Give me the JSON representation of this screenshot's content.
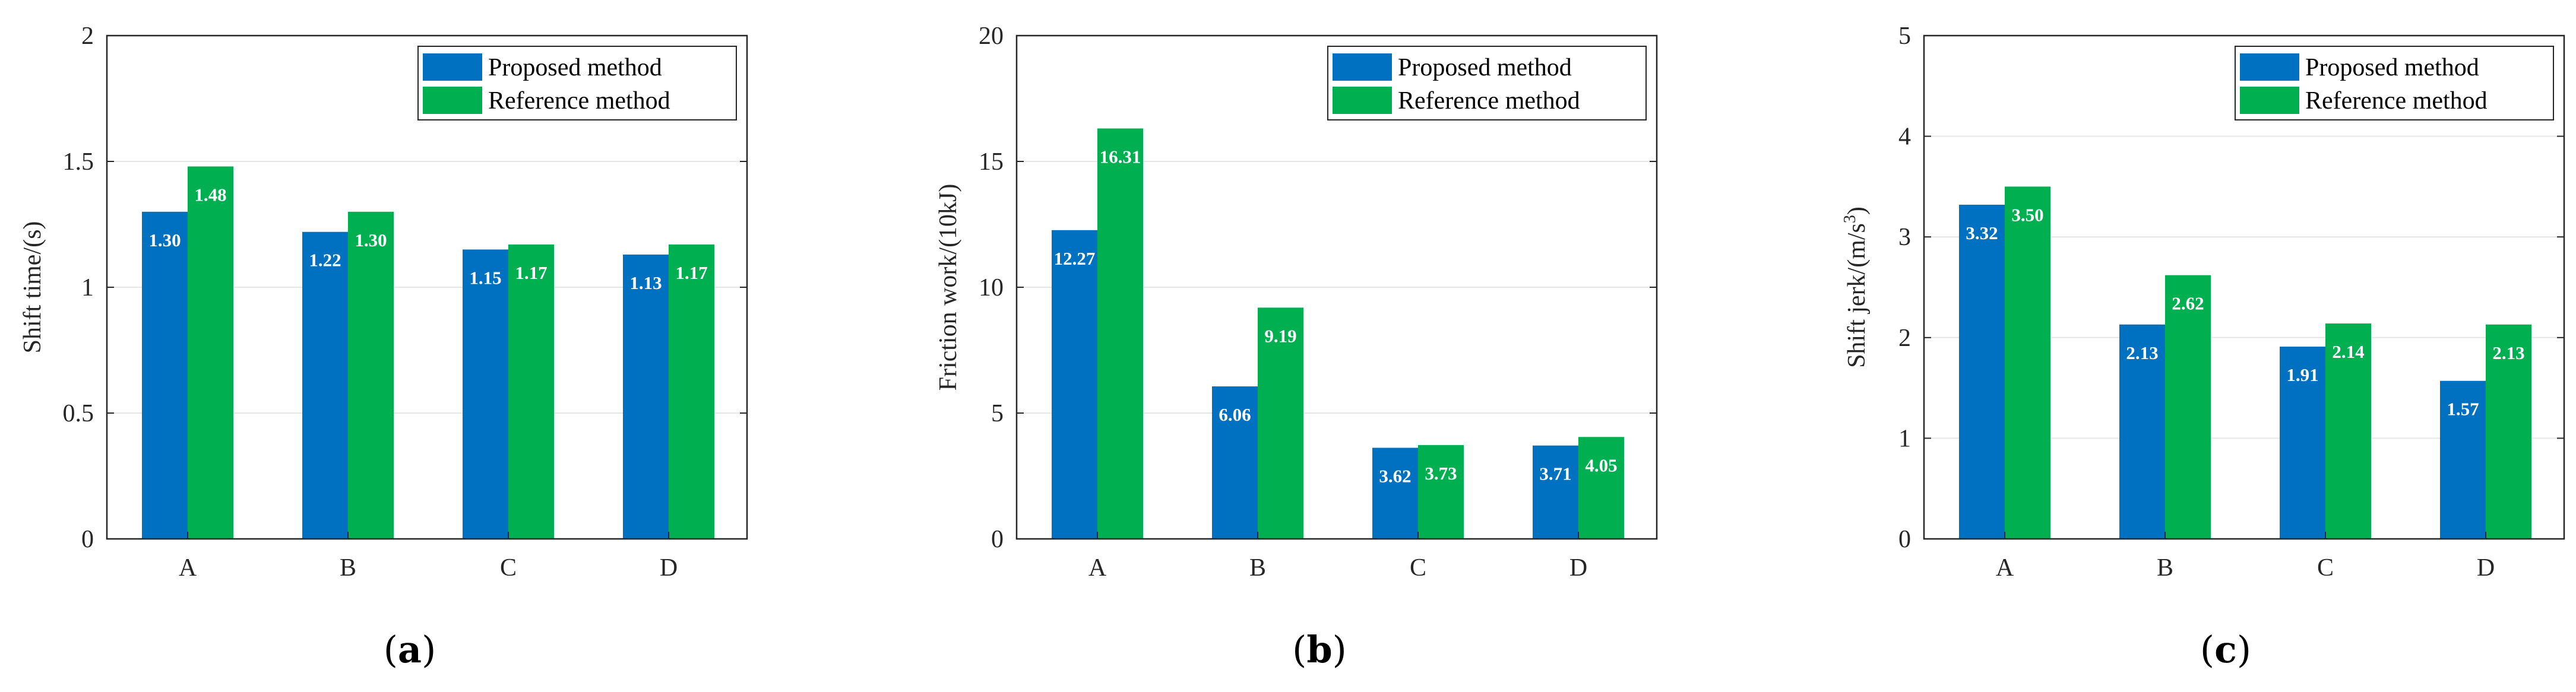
{
  "colors": {
    "proposed": "#0070C0",
    "reference": "#00B050",
    "grid": "#e6e6e6",
    "axis": "#262626"
  },
  "chart_data": [
    {
      "panel": "(a)",
      "panel_letter": "a",
      "type": "bar",
      "title": "",
      "xlabel": "",
      "ylabel": "Shift time/(s)",
      "categories": [
        "A",
        "B",
        "C",
        "D"
      ],
      "ylim": [
        0,
        2
      ],
      "yticks": [
        0,
        0.5,
        1,
        1.5,
        2
      ],
      "ytick_labels": [
        "0",
        "0.5",
        "1",
        "1.5",
        "2"
      ],
      "grid": true,
      "legend_position": "top-right",
      "series": [
        {
          "name": "Proposed method",
          "values": [
            1.3,
            1.22,
            1.15,
            1.13
          ],
          "labels": [
            "1.30",
            "1.22",
            "1.15",
            "1.13"
          ]
        },
        {
          "name": "Reference method",
          "values": [
            1.48,
            1.3,
            1.17,
            1.17
          ],
          "labels": [
            "1.48",
            "1.30",
            "1.17",
            "1.17"
          ]
        }
      ]
    },
    {
      "panel": "(b)",
      "panel_letter": "b",
      "type": "bar",
      "title": "",
      "xlabel": "",
      "ylabel": "Friction work/(10kJ)",
      "categories": [
        "A",
        "B",
        "C",
        "D"
      ],
      "ylim": [
        0,
        20
      ],
      "yticks": [
        0,
        5,
        10,
        15,
        20
      ],
      "ytick_labels": [
        "0",
        "5",
        "10",
        "15",
        "20"
      ],
      "grid": true,
      "legend_position": "top-right",
      "series": [
        {
          "name": "Proposed method",
          "values": [
            12.27,
            6.06,
            3.62,
            3.71
          ],
          "labels": [
            "12.27",
            "6.06",
            "3.62",
            "3.71"
          ]
        },
        {
          "name": "Reference method",
          "values": [
            16.31,
            9.19,
            3.73,
            4.05
          ],
          "labels": [
            "16.31",
            "9.19",
            "3.73",
            "4.05"
          ]
        }
      ]
    },
    {
      "panel": "(c)",
      "panel_letter": "c",
      "type": "bar",
      "title": "",
      "xlabel": "",
      "ylabel": "Shift jerk/(m/s",
      "ylabel_sup": "3",
      "ylabel_end": ")",
      "categories": [
        "A",
        "B",
        "C",
        "D"
      ],
      "ylim": [
        0,
        5
      ],
      "yticks": [
        0,
        1,
        2,
        3,
        4,
        5
      ],
      "ytick_labels": [
        "0",
        "1",
        "2",
        "3",
        "4",
        "5"
      ],
      "grid": true,
      "legend_position": "top-right",
      "series": [
        {
          "name": "Proposed method",
          "values": [
            3.32,
            2.13,
            1.91,
            1.57
          ],
          "labels": [
            "3.32",
            "2.13",
            "1.91",
            "1.57"
          ]
        },
        {
          "name": "Reference method",
          "values": [
            3.5,
            2.62,
            2.14,
            2.13
          ],
          "labels": [
            "3.50",
            "2.62",
            "2.14",
            "2.13"
          ]
        }
      ]
    }
  ]
}
